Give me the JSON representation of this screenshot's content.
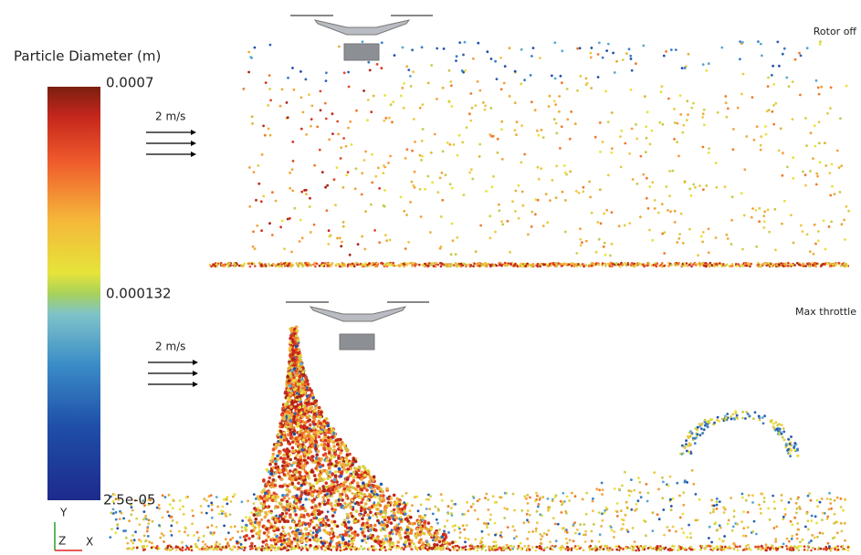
{
  "colorbar": {
    "title": "Particle Diameter (m)",
    "labels": [
      "0.0007",
      "0.000132",
      "2.5e-05"
    ]
  },
  "panels": [
    {
      "label": "Rotor off",
      "wind": "2 m/s"
    },
    {
      "label": "Max throttle",
      "wind": "2 m/s"
    }
  ],
  "axes": {
    "y": "Y",
    "z": "Z",
    "x": "X"
  }
}
